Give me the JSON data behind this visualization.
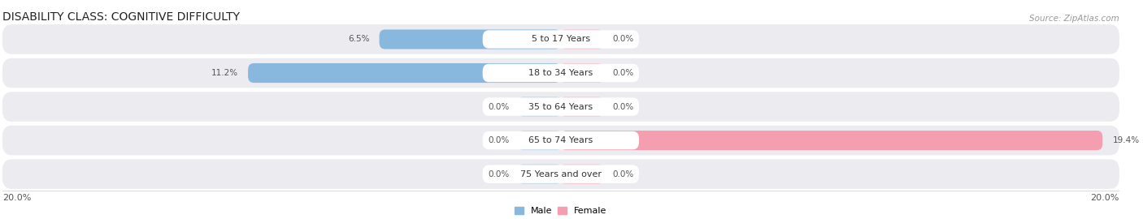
{
  "title": "DISABILITY CLASS: COGNITIVE DIFFICULTY",
  "source_text": "Source: ZipAtlas.com",
  "categories": [
    "5 to 17 Years",
    "18 to 34 Years",
    "35 to 64 Years",
    "65 to 74 Years",
    "75 Years and over"
  ],
  "male_values": [
    6.5,
    11.2,
    0.0,
    0.0,
    0.0
  ],
  "female_values": [
    0.0,
    0.0,
    0.0,
    19.4,
    0.0
  ],
  "max_value": 20.0,
  "male_color": "#89b8df",
  "female_color": "#f49eb0",
  "male_color_dark": "#6ea8d8",
  "female_color_dark": "#ef7d9c",
  "male_label": "Male",
  "female_label": "Female",
  "row_bg_color": "#ebebf0",
  "stub_male_color": "#b8d4ea",
  "stub_female_color": "#f8c0cc",
  "stub_size": 1.5,
  "axis_label_left": "20.0%",
  "axis_label_right": "20.0%",
  "title_fontsize": 10,
  "source_fontsize": 7.5,
  "label_fontsize": 8,
  "category_fontsize": 8,
  "value_fontsize": 7.5
}
